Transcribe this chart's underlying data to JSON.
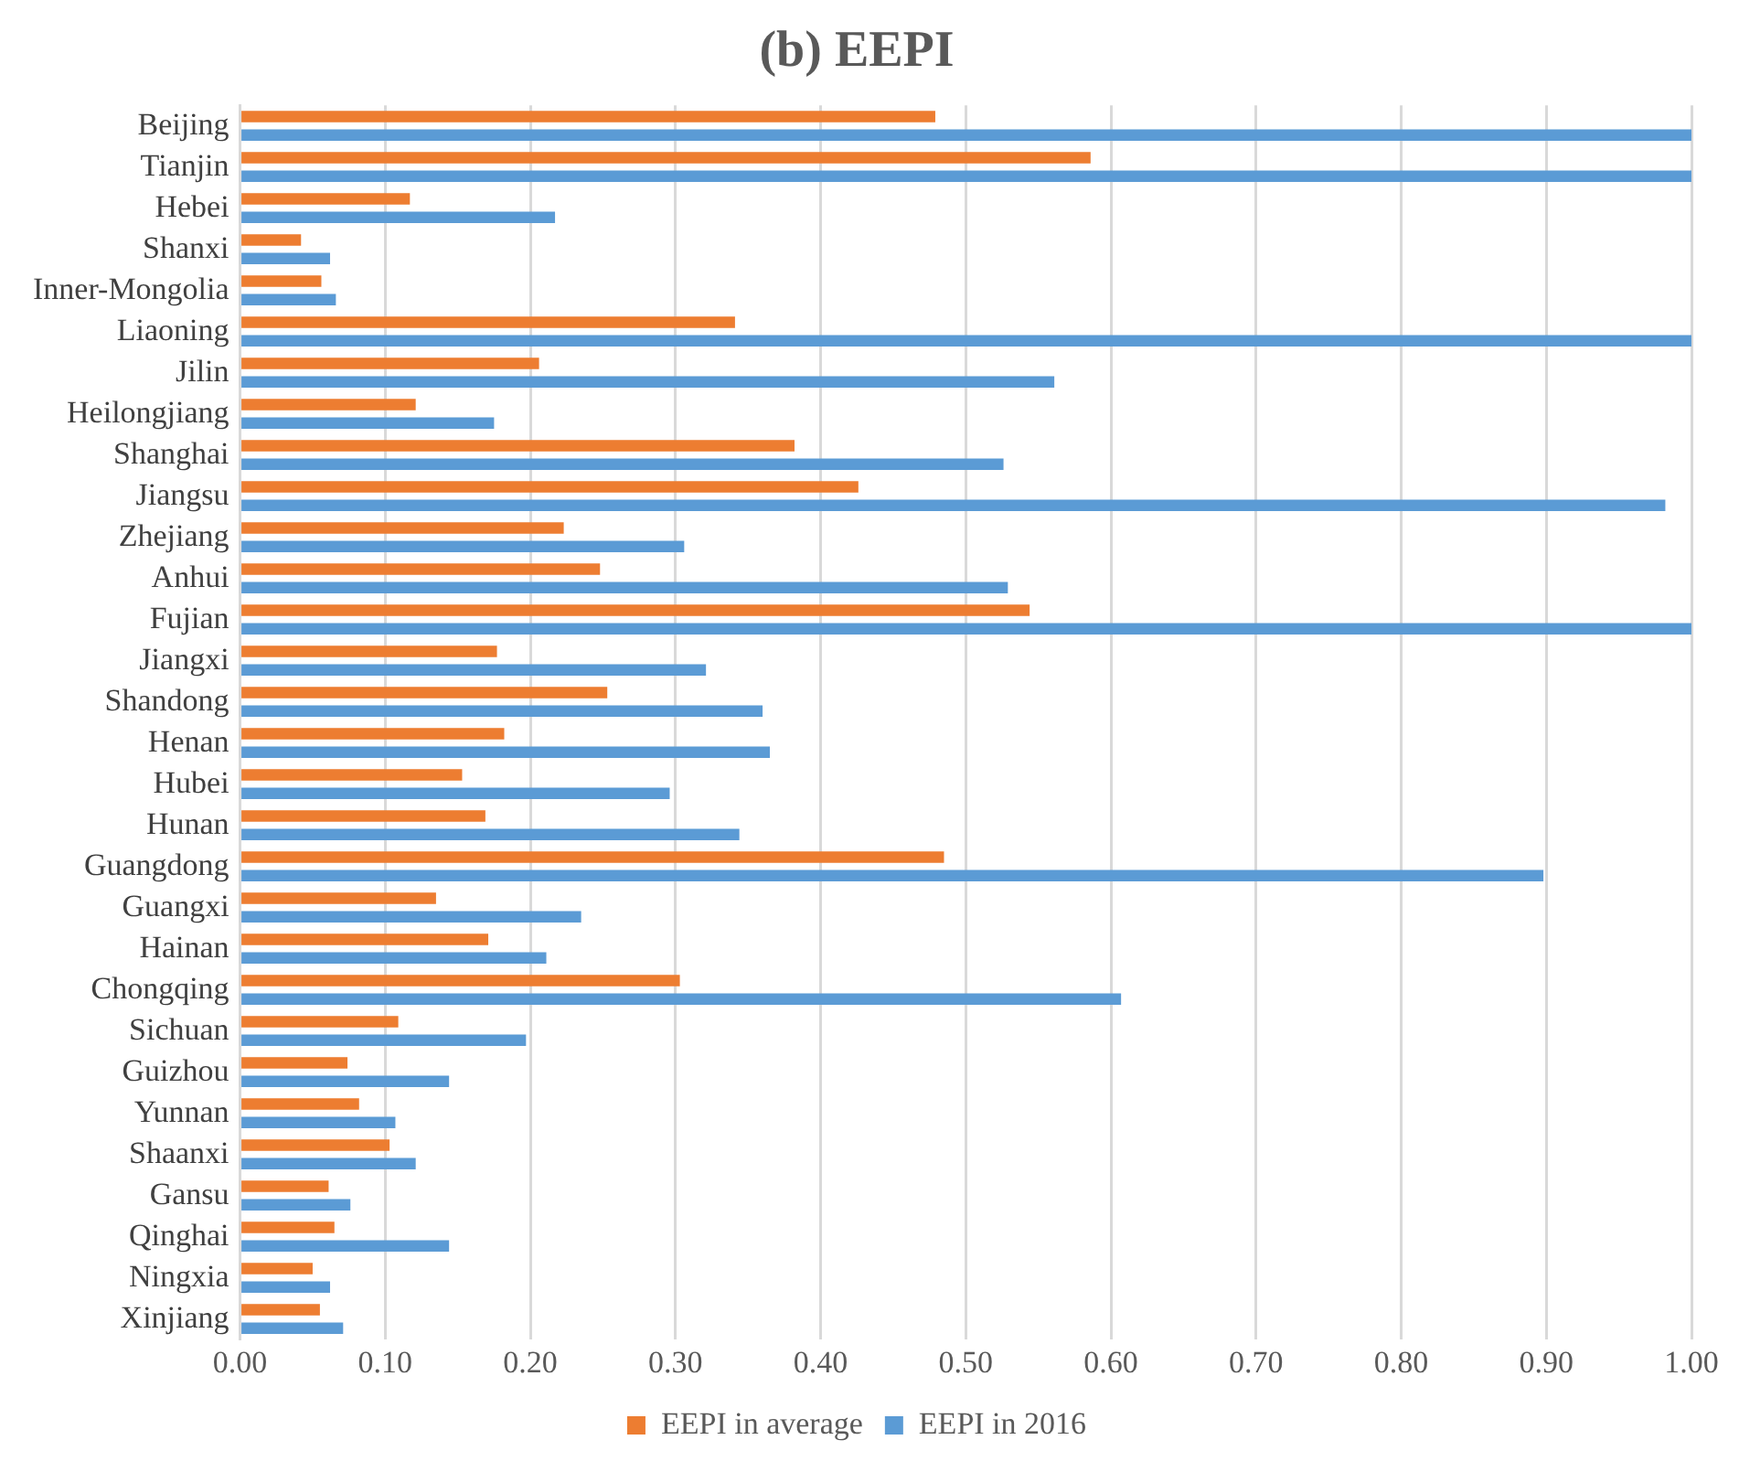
{
  "chart_data": {
    "type": "bar",
    "orientation": "horizontal",
    "title": "(b) EEPI",
    "categories": [
      "Beijing",
      "Tianjin",
      "Hebei",
      "Shanxi",
      "Inner-Mongolia",
      "Liaoning",
      "Jilin",
      "Heilongjiang",
      "Shanghai",
      "Jiangsu",
      "Zhejiang",
      "Anhui",
      "Fujian",
      "Jiangxi",
      "Shandong",
      "Henan",
      "Hubei",
      "Hunan",
      "Guangdong",
      "Guangxi",
      "Hainan",
      "Chongqing",
      "Sichuan",
      "Guizhou",
      "Yunnan",
      "Shaanxi",
      "Gansu",
      "Qinghai",
      "Ningxia",
      "Xinjiang"
    ],
    "series": [
      {
        "name": "EEPI in average",
        "color": "#ed7d31",
        "values": [
          0.479,
          0.586,
          0.117,
          0.042,
          0.056,
          0.341,
          0.206,
          0.121,
          0.382,
          0.426,
          0.223,
          0.248,
          0.544,
          0.177,
          0.253,
          0.182,
          0.153,
          0.169,
          0.485,
          0.135,
          0.171,
          0.303,
          0.109,
          0.074,
          0.082,
          0.103,
          0.061,
          0.065,
          0.05,
          0.055
        ]
      },
      {
        "name": "EEPI in 2016",
        "color": "#5b9bd5",
        "values": [
          1,
          1,
          0.217,
          0.062,
          0.066,
          1,
          0.561,
          0.175,
          0.526,
          0.982,
          0.306,
          0.529,
          1,
          0.321,
          0.36,
          0.365,
          0.296,
          0.344,
          0.898,
          0.235,
          0.211,
          0.607,
          0.197,
          0.144,
          0.107,
          0.121,
          0.076,
          0.144,
          0.062,
          0.071
        ]
      }
    ],
    "xlim": [
      0,
      1
    ],
    "xticks": [
      {
        "value": 0,
        "label": "0.00"
      },
      {
        "value": 0.1,
        "label": "0.10"
      },
      {
        "value": 0.2,
        "label": "0.20"
      },
      {
        "value": 0.3,
        "label": "0.30"
      },
      {
        "value": 0.4,
        "label": "0.40"
      },
      {
        "value": 0.5,
        "label": "0.50"
      },
      {
        "value": 0.6,
        "label": "0.60"
      },
      {
        "value": 0.7,
        "label": "0.70"
      },
      {
        "value": 0.8,
        "label": "0.80"
      },
      {
        "value": 0.9,
        "label": "0.90"
      },
      {
        "value": 1,
        "label": "1.00"
      }
    ],
    "grid": "x",
    "legend": "bottom"
  }
}
